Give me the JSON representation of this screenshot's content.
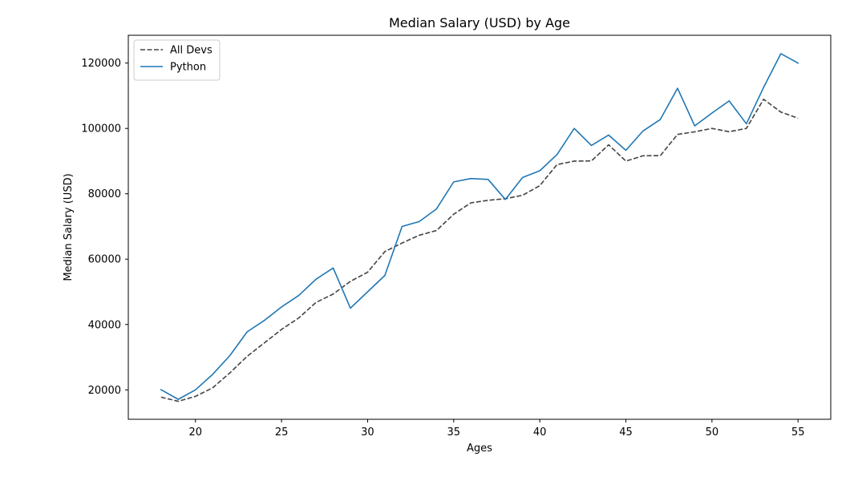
{
  "chart_data": {
    "type": "line",
    "title": "Median Salary (USD) by Age",
    "xlabel": "Ages",
    "ylabel": "Median Salary (USD)",
    "x": [
      18,
      19,
      20,
      21,
      22,
      23,
      24,
      25,
      26,
      27,
      28,
      29,
      30,
      31,
      32,
      33,
      34,
      35,
      36,
      37,
      38,
      39,
      40,
      41,
      42,
      43,
      44,
      45,
      46,
      47,
      48,
      49,
      50,
      51,
      52,
      53,
      54,
      55
    ],
    "xlim": [
      16.1,
      56.9
    ],
    "ylim": [
      11000,
      128500
    ],
    "xticks": [
      20,
      25,
      30,
      35,
      40,
      45,
      50,
      55
    ],
    "yticks": [
      20000,
      40000,
      60000,
      80000,
      100000,
      120000
    ],
    "grid": false,
    "legend_position": "top-left",
    "series": [
      {
        "name": "All Devs",
        "color": "#444444",
        "linestyle": "dashed",
        "values": [
          17784,
          16500,
          18012,
          20628,
          25206,
          30252,
          34368,
          38496,
          42000,
          46752,
          49320,
          53200,
          56000,
          62316,
          64928,
          67317,
          68748,
          73752,
          77232,
          78000,
          78508,
          79536,
          82488,
          88935,
          90000,
          90056,
          95000,
          90000,
          91633,
          91660,
          98150,
          98964,
          100000,
          98988,
          100000,
          108923,
          105000,
          103117
        ]
      },
      {
        "name": "Python",
        "color": "#1f77b4",
        "linestyle": "solid",
        "values": [
          20046,
          17100,
          20000,
          24744,
          30500,
          37732,
          41247,
          45372,
          48876,
          53850,
          57287,
          45000,
          50000,
          55000,
          70000,
          71496,
          75370,
          83640,
          84666,
          84392,
          78254,
          85000,
          87038,
          91991,
          100000,
          94796,
          97962,
          93302,
          99240,
          102736,
          112285,
          100771,
          104708,
          108423,
          101407,
          112542,
          122870,
          120000
        ]
      }
    ]
  }
}
